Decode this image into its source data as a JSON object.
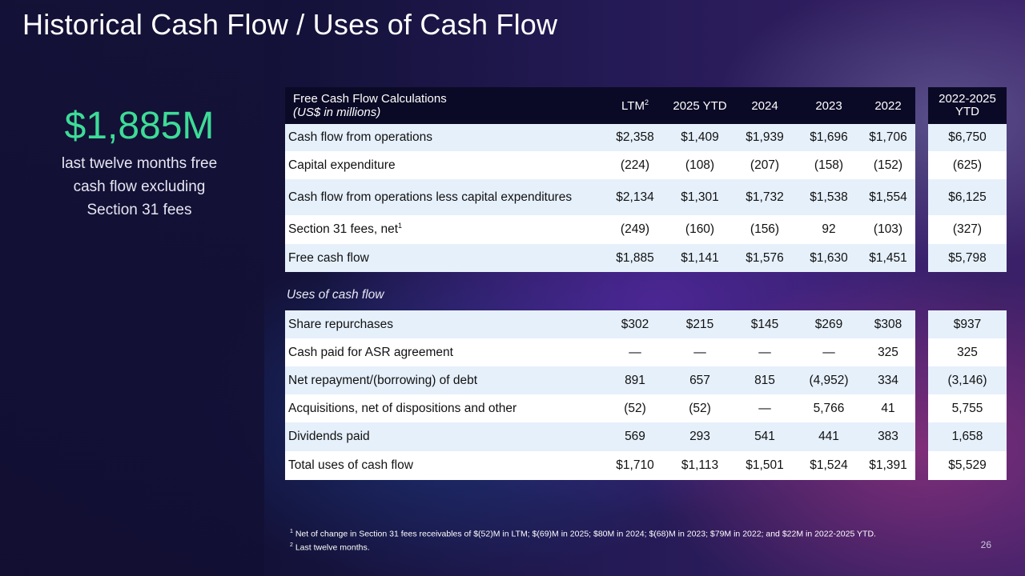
{
  "title": "Historical Cash Flow / Uses of Cash Flow",
  "kpi": {
    "value": "$1,885M",
    "line1": "last twelve months free",
    "line2": "cash flow excluding",
    "line3": "Section 31 fees"
  },
  "fcf_table": {
    "header_title": "Free Cash Flow Calculations",
    "header_subtitle": "(US$ in millions)",
    "columns": [
      "LTM",
      "2025 YTD",
      "2024",
      "2023",
      "2022"
    ],
    "ltm_superscript": "2",
    "rows": [
      {
        "label": "Cash flow from operations",
        "values": [
          "$2,358",
          "$1,409",
          "$1,939",
          "$1,696",
          "$1,706"
        ]
      },
      {
        "label": "Capital expenditure",
        "values": [
          "(224)",
          "(108)",
          "(207)",
          "(158)",
          "(152)"
        ]
      },
      {
        "label": "Cash flow from operations less capital expenditures",
        "values": [
          "$2,134",
          "$1,301",
          "$1,732",
          "$1,538",
          "$1,554"
        ]
      },
      {
        "label": "Section 31 fees, net",
        "label_sup": "1",
        "values": [
          "(249)",
          "(160)",
          "(156)",
          "92",
          "(103)"
        ]
      },
      {
        "label": "Free cash flow",
        "values": [
          "$1,885",
          "$1,141",
          "$1,576",
          "$1,630",
          "$1,451"
        ]
      }
    ]
  },
  "uses_caption": "Uses of cash flow",
  "uses_table": {
    "rows": [
      {
        "label": "Share repurchases",
        "values": [
          "$302",
          "$215",
          "$145",
          "$269",
          "$308"
        ]
      },
      {
        "label": "Cash paid for ASR agreement",
        "values": [
          "—",
          "—",
          "—",
          "—",
          "325"
        ]
      },
      {
        "label": "Net repayment/(borrowing) of debt",
        "values": [
          "891",
          "657",
          "815",
          "(4,952)",
          "334"
        ]
      },
      {
        "label": "Acquisitions, net of dispositions and other",
        "values": [
          "(52)",
          "(52)",
          "—",
          "5,766",
          "41"
        ]
      },
      {
        "label": "Dividends paid",
        "values": [
          "569",
          "293",
          "541",
          "441",
          "383"
        ]
      },
      {
        "label": "Total uses of cash flow",
        "values": [
          "$1,710",
          "$1,113",
          "$1,501",
          "$1,524",
          "$1,391"
        ]
      }
    ]
  },
  "ytd_column": {
    "header_line1": "2022-2025",
    "header_line2": "YTD",
    "fcf_values": [
      "$6,750",
      "(625)",
      "$6,125",
      "(327)",
      "$5,798"
    ],
    "uses_values": [
      "$937",
      "325",
      "(3,146)",
      "5,755",
      "1,658",
      "$5,529"
    ]
  },
  "footnotes": {
    "note1_marker": "1",
    "note1": "Net of change in Section 31 fees receivables of $(52)M in LTM; $(69)M in 2025; $80M in 2024; $(68)M in 2023; $79M in 2022; and $22M in 2022-2025 YTD.",
    "note2_marker": "2",
    "note2": "Last twelve months."
  },
  "page_number": "26",
  "colors": {
    "accent_green": "#3ddc97",
    "header_navy": "#0b0a26",
    "row_shade": "#e6f0fb"
  }
}
